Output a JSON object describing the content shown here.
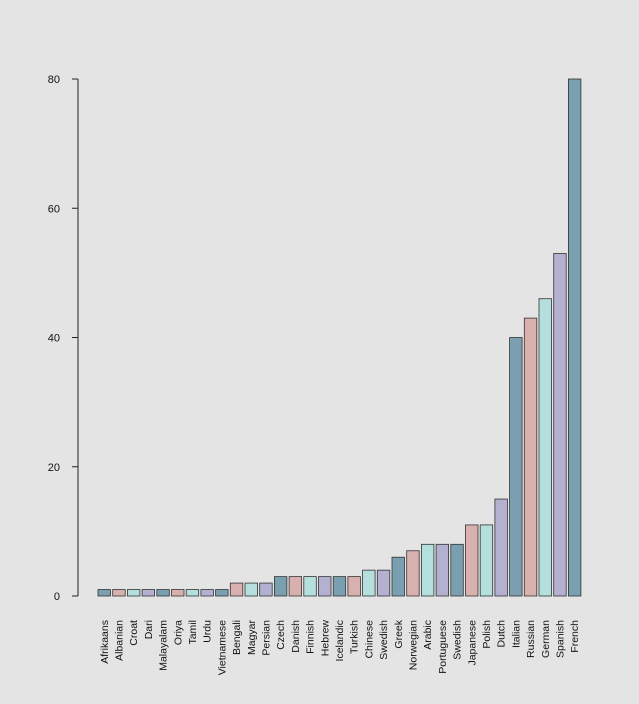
{
  "chart_data": {
    "type": "bar",
    "title": "",
    "xlabel": "",
    "ylabel": "",
    "ylim": [
      0,
      80
    ],
    "yticks": [
      0,
      20,
      40,
      60,
      80
    ],
    "grid": false,
    "categories": [
      "Afrikaans",
      "Albanian",
      "Croat",
      "Dari",
      "Malayalam",
      "Oriya",
      "Tamil",
      "Urdu",
      "Vietnamese",
      "Bengali",
      "Magyar",
      "Persian",
      "Czech",
      "Danish",
      "Finnish",
      "Hebrew",
      "Icelandic",
      "Turkish",
      "Chinese",
      "Swedish",
      "Greek",
      "Norwegian",
      "Arabic",
      "Portuguese",
      "Swedish",
      "Japanese",
      "Polish",
      "Dutch",
      "Italian",
      "Russian",
      "German",
      "Spanish",
      "French"
    ],
    "values": [
      1,
      1,
      1,
      1,
      1,
      1,
      1,
      1,
      1,
      2,
      2,
      2,
      3,
      3,
      3,
      3,
      3,
      3,
      4,
      4,
      6,
      7,
      8,
      8,
      8,
      11,
      11,
      15,
      40,
      43,
      46,
      53,
      80
    ],
    "palette": [
      "#7a9fb0",
      "#d8b0ae",
      "#b5dfdd",
      "#b3b0d0"
    ],
    "bar_stroke": "#333333",
    "axis_color": "#222222"
  }
}
